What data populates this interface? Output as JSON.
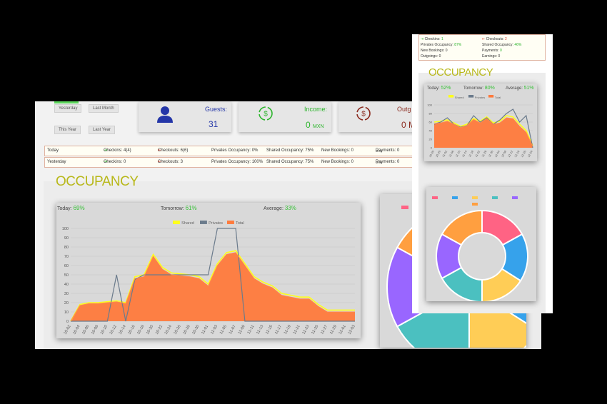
{
  "main": {
    "filters": [
      "Yesterday",
      "Last Month",
      "This Year",
      "Last Year"
    ],
    "cards": {
      "guests": {
        "label": "Guests:",
        "value": "31"
      },
      "income": {
        "label": "Income:",
        "value": "0",
        "unit": "MXN"
      },
      "outgoing": {
        "label": "Outg",
        "value": "0 M"
      }
    },
    "rows": [
      {
        "label": "Today",
        "checkins": "Checkins: 4(4)",
        "checkouts": "Checkouts: 6(6)",
        "privates": "Privates Occupancy: 0%",
        "shared": "Shared Occupancy: 75%",
        "bookings": "New Bookings: 0",
        "payments": "Payments: 0",
        "unit": "MXN"
      },
      {
        "label": "Yesterday",
        "checkins": "Checkins: 0",
        "checkouts": "Checkouts: 3",
        "privates": "Privates Occupancy: 100%",
        "shared": "Shared Occupancy: 75%",
        "bookings": "New Bookings: 0",
        "payments": "Payments: 0",
        "unit": "MXN"
      }
    ],
    "occupancy_title": "OCCUPANCY",
    "kpis": {
      "today_label": "Today:",
      "today_value": "69%",
      "tomorrow_label": "Tomorrow:",
      "tomorrow_value": "61%",
      "average_label": "Average:",
      "average_value": "33%"
    }
  },
  "overlay": {
    "lines": [
      {
        "a_label": "Checkins:",
        "a_val": "1",
        "b_label": "Checkouts:",
        "b_val": "2"
      },
      {
        "a_label": "Privates Occupancy:",
        "a_val": "87%",
        "b_label": "Shared Occupancy:",
        "b_val": "46%"
      },
      {
        "a_label": "New Bookings:",
        "a_val": "0",
        "b_label": "Payments:",
        "b_val": "0"
      },
      {
        "a_label": "Outgoings:",
        "a_val": "0",
        "b_label": "Earnings:",
        "b_val": "0"
      }
    ],
    "occupancy_title": "OCCUPANCY",
    "kpis": {
      "today_label": "Today:",
      "today_value": "52%",
      "tomorrow_label": "Tomorrow:",
      "tomorrow_value": "80%",
      "average_label": "Average:",
      "average_value": "51%"
    }
  },
  "colors": {
    "shared": "#ffff1a",
    "privates": "#6b7b8c",
    "total": "#ff7a3c",
    "accent_green": "#2db52d",
    "accent_red": "#e0412e",
    "title": "#b8b81a"
  },
  "chart_data": [
    {
      "type": "area",
      "legend": [
        "Shared",
        "Privates",
        "Total"
      ],
      "legend_position": "top-center",
      "ylim": [
        0,
        100
      ],
      "yticks": [
        0,
        10,
        20,
        30,
        40,
        50,
        60,
        70,
        80,
        90,
        100
      ],
      "x": [
        "10-02",
        "10-04",
        "10-06",
        "10-08",
        "10-10",
        "10-12",
        "10-14",
        "10-16",
        "10-18",
        "10-20",
        "10-22",
        "10-24",
        "10-26",
        "10-28",
        "10-30",
        "11-01",
        "11-03",
        "11-05",
        "11-07",
        "11-09",
        "11-11",
        "11-13",
        "11-15",
        "11-17",
        "11-19",
        "11-21",
        "11-23",
        "11-25",
        "11-27",
        "11-29",
        "12-01",
        "12-03"
      ],
      "series": [
        {
          "name": "Shared",
          "values": [
            0,
            18,
            20,
            20,
            21,
            22,
            20,
            48,
            50,
            72,
            58,
            52,
            51,
            50,
            48,
            40,
            62,
            74,
            76,
            62,
            48,
            42,
            38,
            30,
            28,
            26,
            26,
            18,
            12,
            12,
            12,
            12
          ]
        },
        {
          "name": "Privates",
          "values": [
            0,
            0,
            0,
            0,
            0,
            50,
            0,
            45,
            50,
            50,
            50,
            50,
            50,
            50,
            50,
            50,
            100,
            100,
            100,
            0,
            0,
            0,
            0,
            0,
            0,
            0,
            0,
            0,
            0,
            0,
            0,
            0
          ]
        },
        {
          "name": "Total",
          "values": [
            0,
            17,
            19,
            19,
            20,
            21,
            19,
            46,
            48,
            70,
            56,
            50,
            49,
            48,
            46,
            38,
            60,
            72,
            74,
            60,
            46,
            40,
            36,
            28,
            26,
            24,
            24,
            16,
            10,
            10,
            10,
            10
          ]
        }
      ]
    },
    {
      "type": "area",
      "legend": [
        "Shared",
        "Privates",
        "Total"
      ],
      "legend_position": "top-center",
      "ylim": [
        0,
        100
      ],
      "yticks": [
        0,
        20,
        40,
        60,
        80,
        100
      ],
      "x": [
        "10-25",
        "10-29",
        "11-02",
        "11-06",
        "11-10",
        "11-14",
        "11-18",
        "11-22",
        "11-26",
        "11-30",
        "12-04",
        "12-08",
        "12-12",
        "12-16",
        "12-20",
        "12-24"
      ],
      "series": [
        {
          "name": "Shared",
          "values": [
            60,
            62,
            65,
            58,
            50,
            55,
            68,
            62,
            72,
            58,
            62,
            75,
            72,
            55,
            40,
            5
          ]
        },
        {
          "name": "Privates",
          "values": [
            55,
            60,
            70,
            55,
            48,
            52,
            75,
            60,
            70,
            55,
            65,
            80,
            90,
            60,
            75,
            0
          ]
        },
        {
          "name": "Total",
          "values": [
            56,
            58,
            62,
            55,
            47,
            52,
            66,
            58,
            68,
            55,
            58,
            70,
            68,
            50,
            36,
            3
          ]
        }
      ]
    },
    {
      "type": "pie",
      "labels": [
        "",
        "",
        "",
        "",
        "",
        ""
      ],
      "values": [
        17,
        17,
        16,
        17,
        16,
        17
      ],
      "colors": [
        "#ff6384",
        "#36a2eb",
        "#ffcd56",
        "#4bc0c0",
        "#9966ff",
        "#ff9f40"
      ]
    }
  ]
}
